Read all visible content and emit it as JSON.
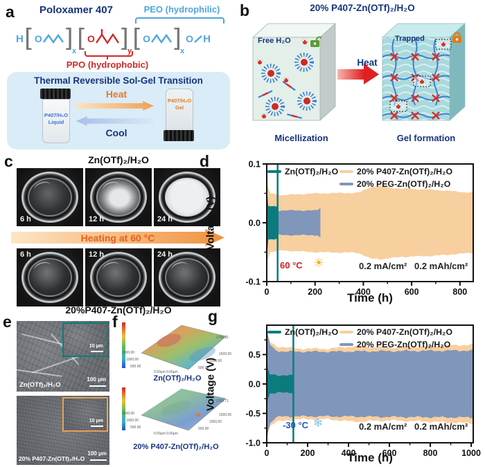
{
  "colors": {
    "navy": "#16337d",
    "peo_blue": "#4ea7dd",
    "ppo_red": "#d42724",
    "teal": "#0b7b7e",
    "peach": "#f8cf9f",
    "slate_blue": "#8096bb",
    "heat_orange": "#e8772f",
    "arrow_text_orange": "#e8601c",
    "sun": "#f2b21b",
    "snowflake": "#7cc4ee"
  },
  "panels": {
    "a": {
      "label": "a",
      "title": "Poloxamer 407",
      "peo": "PEO (hydrophilic)",
      "ppo": "PPO (hydrophobic)",
      "bracket_open": "[",
      "bracket_close": "]",
      "atoms": {
        "h1": "H",
        "o1": "O",
        "x1": "x",
        "o2": "O",
        "y1": "y",
        "o3": "O",
        "x2": "x",
        "o4": "O",
        "h2": "H"
      },
      "solgel": {
        "title": "Thermal Reversible Sol-Gel Transition",
        "heat": "Heat",
        "cool": "Cool",
        "vial_left_line1": "P407/H₂O",
        "vial_left_line2": "Liquid",
        "vial_right_line1": "P407/H₂O",
        "vial_right_line2": "Gel"
      }
    },
    "b": {
      "label": "b",
      "title": "20% P407-Zn(OTf)₂/H₂O",
      "free_water": "Free H₂O",
      "trapped": "Trapped",
      "heat": "Heat",
      "micellization": "Micellization",
      "gel_formation": "Gel formation"
    },
    "c": {
      "label": "c",
      "title_top": "Zn(OTf)₂/H₂O",
      "times_top": [
        "6 h",
        "12 h",
        "24 h"
      ],
      "arrow_text": "Heating at 60 °C",
      "times_bottom": [
        "6 h",
        "12 h",
        "24 h"
      ],
      "title_bottom": "20%P407-Zn(OTf)₂/H₂O"
    },
    "d": {
      "label": "d"
    },
    "e": {
      "label": "e",
      "sem": [
        {
          "name": "Zn(OTf)₂/H₂O",
          "scale": "100 μm",
          "inset_scale": "10 μm"
        },
        {
          "name": "20% P407-Zn(OTf)₂/H₂O",
          "scale": "100 μm",
          "inset_scale": "10 μm"
        }
      ]
    },
    "f": {
      "label": "f",
      "maps": [
        {
          "caption": "Zn(OTf)₂/H₂O",
          "left_ticks": [
            "1500.00",
            "1000.00",
            "500.00"
          ],
          "origin_x": "0.00μm",
          "origin_y": "0.00μm",
          "right_ticks": [
            "500.00",
            "1000.00",
            "1500.00"
          ],
          "corner": "1795.31"
        },
        {
          "caption": "20% P407-Zn(OTf)₂/H₂O",
          "left_ticks": [
            "1500.00",
            "1000.00",
            "500.00"
          ],
          "origin_x": "0.00μm",
          "origin_y": "0.00μm",
          "right_ticks": [
            "500.00",
            "1000.00",
            "1500.00"
          ],
          "corner": "1763.71"
        }
      ]
    },
    "g": {
      "label": "g"
    }
  },
  "chart_data": [
    {
      "id": "d",
      "type": "area",
      "title": "",
      "xlabel": "Time (h)",
      "ylabel": "Voltage (V)",
      "xlim": [
        0,
        855
      ],
      "ylim": [
        -0.1,
        0.1
      ],
      "xticks": [
        0,
        200,
        400,
        600,
        800
      ],
      "xminor": [
        100,
        300,
        500,
        700
      ],
      "yticks": [
        0.1,
        0,
        -0.1
      ],
      "yminor": [
        0.05,
        -0.05
      ],
      "grid": false,
      "legend_position": "top-center",
      "legend": [
        {
          "label": "Zn(OTf)₂/H₂O",
          "color": "#0b7b7e"
        },
        {
          "label": "20% P407-Zn(OTf)₂/H₂O",
          "color": "#f8cf9f"
        },
        {
          "label": "20% PEG-Zn(OTf)₂/H₂O",
          "color": "#8096bb"
        }
      ],
      "series": [
        {
          "name": "20% P407-Zn(OTf)₂/H₂O",
          "color": "#f8cf9f",
          "x_range": [
            0,
            855
          ],
          "envelope": [
            [
              0,
              0.09
            ],
            [
              4,
              0.062
            ],
            [
              15,
              0.05
            ],
            [
              60,
              0.047
            ],
            [
              200,
              0.05
            ],
            [
              380,
              0.051
            ],
            [
              430,
              0.061
            ],
            [
              470,
              0.062
            ],
            [
              560,
              0.058
            ],
            [
              700,
              0.056
            ],
            [
              855,
              0.051
            ]
          ]
        },
        {
          "name": "20% PEG-Zn(OTf)₂/H₂O",
          "color": "#8096bb",
          "x_range": [
            8,
            222
          ],
          "envelope": [
            [
              8,
              0.021
            ],
            [
              100,
              0.021
            ],
            [
              210,
              0.021
            ],
            [
              222,
              0.026
            ]
          ]
        },
        {
          "name": "Zn(OTf)₂/H₂O",
          "color": "#0b7b7e",
          "x_range": [
            0,
            45
          ],
          "envelope": [
            [
              0,
              0.095
            ],
            [
              2,
              0.05
            ],
            [
              6,
              0.028
            ],
            [
              42,
              0.028
            ],
            [
              45,
              0.03
            ]
          ],
          "spike_x": 45
        }
      ],
      "annotations": {
        "temp": "60 °C",
        "temp_color": "#d42020",
        "icon": "sun",
        "icon_glyph": "☀",
        "rate": "0.2 mA/cm²",
        "capacity": "0.2 mAh/cm²"
      }
    },
    {
      "id": "g",
      "type": "area",
      "title": "",
      "xlabel": "Time (h)",
      "ylabel": "Voltage (V)",
      "xlim": [
        0,
        1010
      ],
      "ylim": [
        -1.0,
        1.0
      ],
      "xticks": [
        0,
        200,
        400,
        600,
        800,
        1000
      ],
      "xminor": [
        100,
        300,
        500,
        700,
        900
      ],
      "yticks": [
        0.5,
        0,
        -0.5,
        -1
      ],
      "yminor": [
        0.75,
        0.25,
        -0.25,
        -0.75
      ],
      "grid": false,
      "legend_position": "top-center",
      "legend": [
        {
          "label": "Zn(OTf)₂/H₂O",
          "color": "#0b7b7e"
        },
        {
          "label": "20% P407-Zn(OTf)₂/H₂O",
          "color": "#f8cf9f"
        },
        {
          "label": "20% PEG-Zn(OTf)₂/H₂O",
          "color": "#8096bb"
        }
      ],
      "series": [
        {
          "name": "20% P407-Zn(OTf)₂/H₂O",
          "color": "#f8cf9f",
          "x_range": [
            0,
            1010
          ],
          "envelope": [
            [
              0,
              0.97
            ],
            [
              6,
              0.82
            ],
            [
              20,
              0.7
            ],
            [
              50,
              0.64
            ],
            [
              150,
              0.6
            ],
            [
              300,
              0.6
            ],
            [
              420,
              0.64
            ],
            [
              600,
              0.62
            ],
            [
              800,
              0.64
            ],
            [
              1010,
              0.67
            ]
          ]
        },
        {
          "name": "20% PEG-Zn(OTf)₂/H₂O",
          "color": "#8096bb",
          "x_range": [
            0,
            1010
          ],
          "envelope": [
            [
              0,
              0.93
            ],
            [
              6,
              0.8
            ],
            [
              18,
              0.66
            ],
            [
              45,
              0.57
            ],
            [
              90,
              0.55
            ],
            [
              300,
              0.55
            ],
            [
              600,
              0.56
            ],
            [
              1010,
              0.57
            ]
          ]
        },
        {
          "name": "Zn(OTf)₂/H₂O",
          "color": "#0b7b7e",
          "x_range": [
            0,
            130
          ],
          "envelope": [
            [
              0,
              0.5
            ],
            [
              5,
              0.25
            ],
            [
              15,
              0.16
            ],
            [
              125,
              0.14
            ],
            [
              130,
              0.14
            ]
          ],
          "spike_x": 130
        }
      ],
      "annotations": {
        "temp": "-30 °C",
        "temp_color": "#2456c4",
        "icon": "snowflake",
        "icon_glyph": "❄",
        "rate": "0.2 mA/cm²",
        "capacity": "0.2 mAh/cm²"
      }
    }
  ]
}
